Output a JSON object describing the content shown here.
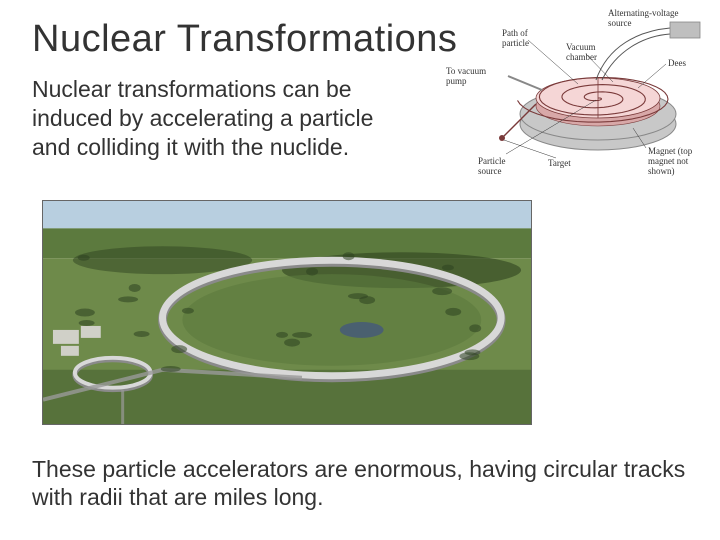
{
  "title": "Nuclear Transformations",
  "intro": "Nuclear transformations can be induced by accelerating a particle and colliding it with the nuclide.",
  "footer": "These particle accelerators are enormous, having circular tracks with radii that are miles long.",
  "diagram": {
    "labels": {
      "alt_source": "Alternating-voltage source",
      "path": "Path of particle",
      "vacuum_chamber": "Vacuum chamber",
      "dees": "Dees",
      "to_pump": "To vacuum pump",
      "particle_source": "Particle source",
      "target": "Target",
      "magnet": "Magnet (top magnet not shown)"
    },
    "colors": {
      "chamber_top": "#f5d6d6",
      "chamber_side": "#d8a8a8",
      "spiral": "#7a3a3a",
      "magnet_body": "#c8c8c8",
      "magnet_edge": "#888888",
      "wire": "#555555",
      "source_box": "#bfbfbf",
      "label": "#333333"
    }
  },
  "photo": {
    "colors": {
      "sky": "#b8cfe0",
      "field_light": "#6e8a4a",
      "field_mid": "#5c7a3e",
      "field_dark": "#455f30",
      "tree_dark": "#2e4220",
      "ring_light": "#d8d8d8",
      "ring_shadow": "#8a8a8a",
      "road": "#9a9a9a",
      "building": "#d0d0c8",
      "water": "#4a6070"
    }
  }
}
